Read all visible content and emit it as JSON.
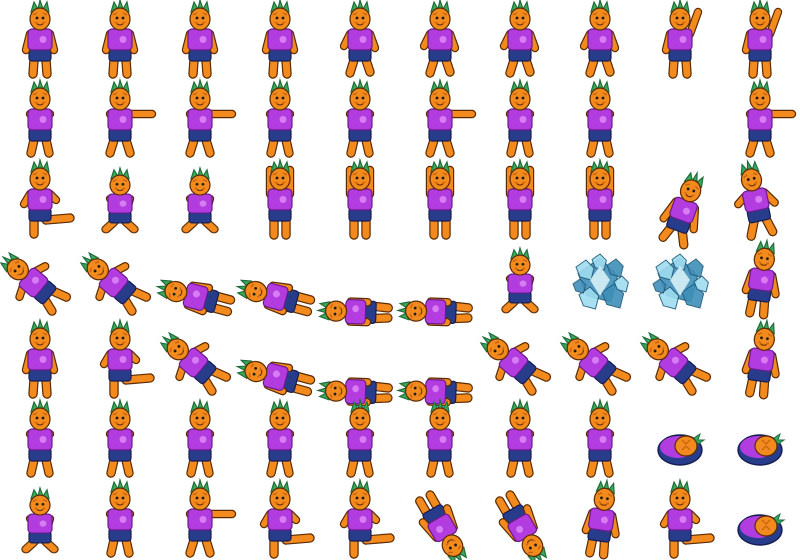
{
  "sheet": {
    "background": "#ffffff",
    "columns": 10,
    "colors": {
      "skin": "#f28a1e",
      "skin_dark": "#c9650d",
      "skin_light": "#ffb45a",
      "shirt": "#b23ce0",
      "shirt_light": "#d77cf2",
      "shorts": "#283c8c",
      "leaf": "#3aa85a",
      "leaf_dark": "#1f6e3a",
      "outline": "#5a2a00",
      "ice": "#9fdcf0",
      "ice_dark": "#3f8fb8"
    },
    "rows": [
      [
        "stand",
        "stand",
        "stand",
        "stand",
        "walk",
        "walk",
        "walk",
        "walk",
        "wave",
        "wave"
      ],
      [
        "guard",
        "punch",
        "punch",
        "guard",
        "guard",
        "punch",
        "guard",
        "guard",
        "empty",
        "punch"
      ],
      [
        "kick",
        "crouch",
        "crouch",
        "arms-up",
        "arms-up",
        "arms-up",
        "arms-up",
        "arms-up",
        "low",
        "lean"
      ],
      [
        "fall",
        "fall",
        "lying",
        "lying",
        "flat",
        "flat",
        "crouch",
        "ice",
        "ice",
        "back"
      ],
      [
        "stand",
        "kick",
        "fall",
        "lying",
        "flat",
        "flat",
        "fall",
        "fall",
        "fall",
        "back"
      ],
      [
        "guard",
        "guard",
        "guard",
        "guard",
        "guard",
        "guard",
        "guard",
        "guard",
        "roll",
        "roll"
      ],
      [
        "crouch",
        "guard",
        "punch",
        "kick",
        "kick",
        "flip",
        "flip",
        "back",
        "kick",
        "roll"
      ]
    ]
  }
}
